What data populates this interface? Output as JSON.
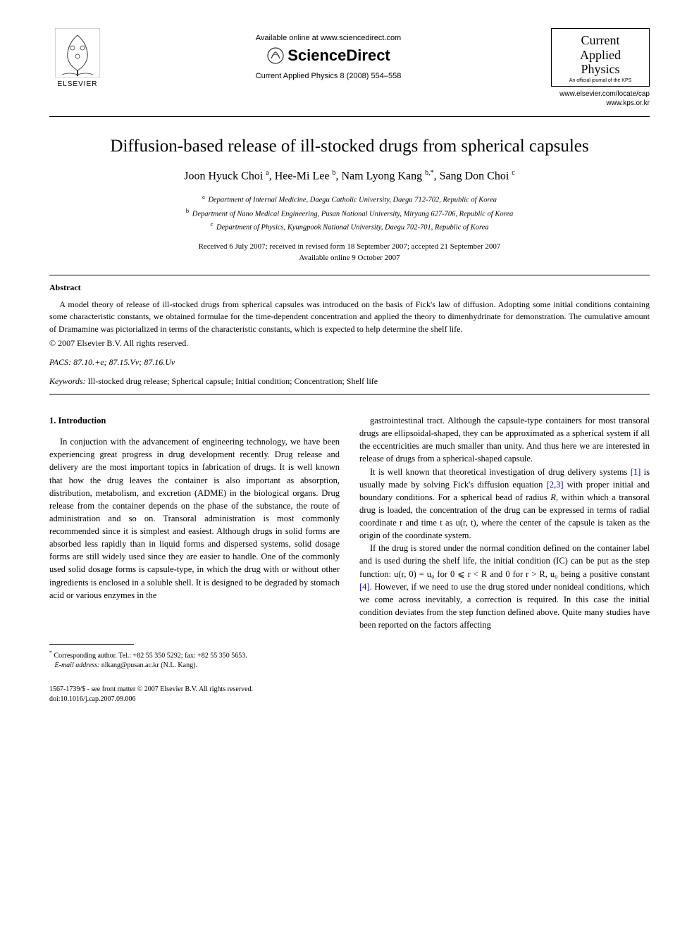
{
  "header": {
    "elsevier_label": "ELSEVIER",
    "available_online": "Available online at www.sciencedirect.com",
    "sciencedirect": "ScienceDirect",
    "journal_ref": "Current Applied Physics 8 (2008) 554–558",
    "journal_box": {
      "line1": "Current",
      "line2": "Applied",
      "line3": "Physics",
      "sub": "An official journal of the KPS"
    },
    "links": {
      "l1": "www.elsevier.com/locate/cap",
      "l2": "www.kps.or.kr"
    }
  },
  "title": "Diffusion-based release of ill-stocked drugs from spherical capsules",
  "authors_html": "Joon Hyuck Choi <sup>a</sup>, Hee-Mi Lee <sup>b</sup>, Nam Lyong Kang <sup>b,*</sup>, Sang Don Choi <sup>c</sup>",
  "affiliations": {
    "a": "Department of Internal Medicine, Daegu Catholic University, Daegu 712-702, Republic of Korea",
    "b": "Department of Nano Medical Engineering, Pusan National University, Miryang 627-706, Republic of Korea",
    "c": "Department of Physics, Kyungpook National University, Daegu 702-701, Republic of Korea"
  },
  "dates": {
    "received": "Received 6 July 2007; received in revised form 18 September 2007; accepted 21 September 2007",
    "online": "Available online 9 October 2007"
  },
  "abstract": {
    "label": "Abstract",
    "text": "A model theory of release of ill-stocked drugs from spherical capsules was introduced on the basis of Fick's law of diffusion. Adopting some initial conditions containing some characteristic constants, we obtained formulae for the time-dependent concentration and applied the theory to dimenhydrinate for demonstration. The cumulative amount of Dramamine was pictorialized in terms of the characteristic constants, which is expected to help determine the shelf life.",
    "copyright": "© 2007 Elsevier B.V. All rights reserved."
  },
  "pacs": {
    "label": "PACS:",
    "codes": "87.10.+e; 87.15.Vv; 87.16.Uv"
  },
  "keywords": {
    "label": "Keywords:",
    "text": "Ill-stocked drug release; Spherical capsule; Initial condition; Concentration; Shelf life"
  },
  "intro": {
    "heading": "1. Introduction",
    "p1": "In conjuction with the advancement of engineering technology, we have been experiencing great progress in drug development recently. Drug release and delivery are the most important topics in fabrication of drugs. It is well known that how the drug leaves the container is also important as absorption, distribution, metabolism, and excretion (ADME) in the biological organs. Drug release from the container depends on the phase of the substance, the route of administration and so on. Transoral administration is most commonly recommended since it is simplest and easiest. Although drugs in solid forms are absorbed less rapidly than in liquid forms and dispersed systems, solid dosage forms are still widely used since they are easier to handle. One of the commonly used solid dosage forms is capsule-type, in which the drug with or without other ingredients is enclosed in a soluble shell. It is designed to be degraded by stomach acid or various enzymes in the",
    "p2": "gastrointestinal tract. Although the capsule-type containers for most transoral drugs are ellipsoidal-shaped, they can be approximated as a spherical system if all the eccentricities are much smaller than unity. And thus here we are interested in release of drugs from a spherical-shaped capsule.",
    "p3_before_ref1": "It is well known that theoretical investigation of drug delivery systems ",
    "ref1": "[1]",
    "p3_mid1": " is usually made by solving Fick's diffusion equation ",
    "ref23": "[2,3]",
    "p3_after_ref23": " with proper initial and boundary conditions. For a spherical bead of radius ",
    "R": "R",
    "p3_tail": ", within which a transoral drug is loaded, the concentration of the drug can be expressed in terms of radial coordinate r and time t as u(r, t), where the center of the capsule is taken as the origin of the coordinate system.",
    "p4_a": "If the drug is stored under the normal condition defined on the container label and is used during the shelf life, the initial condition (IC) can be put as the step function: u(r, 0) = u₀ for 0 ⩽ r < R and 0 for r > R, u₀ being a positive constant ",
    "ref4": "[4]",
    "p4_b": ". However, if we need to use the drug stored under nonideal conditions, which we come across inevitably, a correction is required. In this case the initial condition deviates from the step function defined above. Quite many studies have been reported on the factors affecting"
  },
  "footnote": {
    "corr": "Corresponding author. Tel.: +82 55 350 5292; fax: +82 55 350 5653.",
    "email_label": "E-mail address:",
    "email": "nlkang@pusan.ac.kr",
    "email_name": "(N.L. Kang)."
  },
  "doi": {
    "line1": "1567-1739/$ - see front matter © 2007 Elsevier B.V. All rights reserved.",
    "line2": "doi:10.1016/j.cap.2007.09.006"
  },
  "colors": {
    "text": "#000000",
    "background": "#ffffff",
    "link_blue": "#0000cc",
    "elsevier_orange": "#ff6600"
  }
}
